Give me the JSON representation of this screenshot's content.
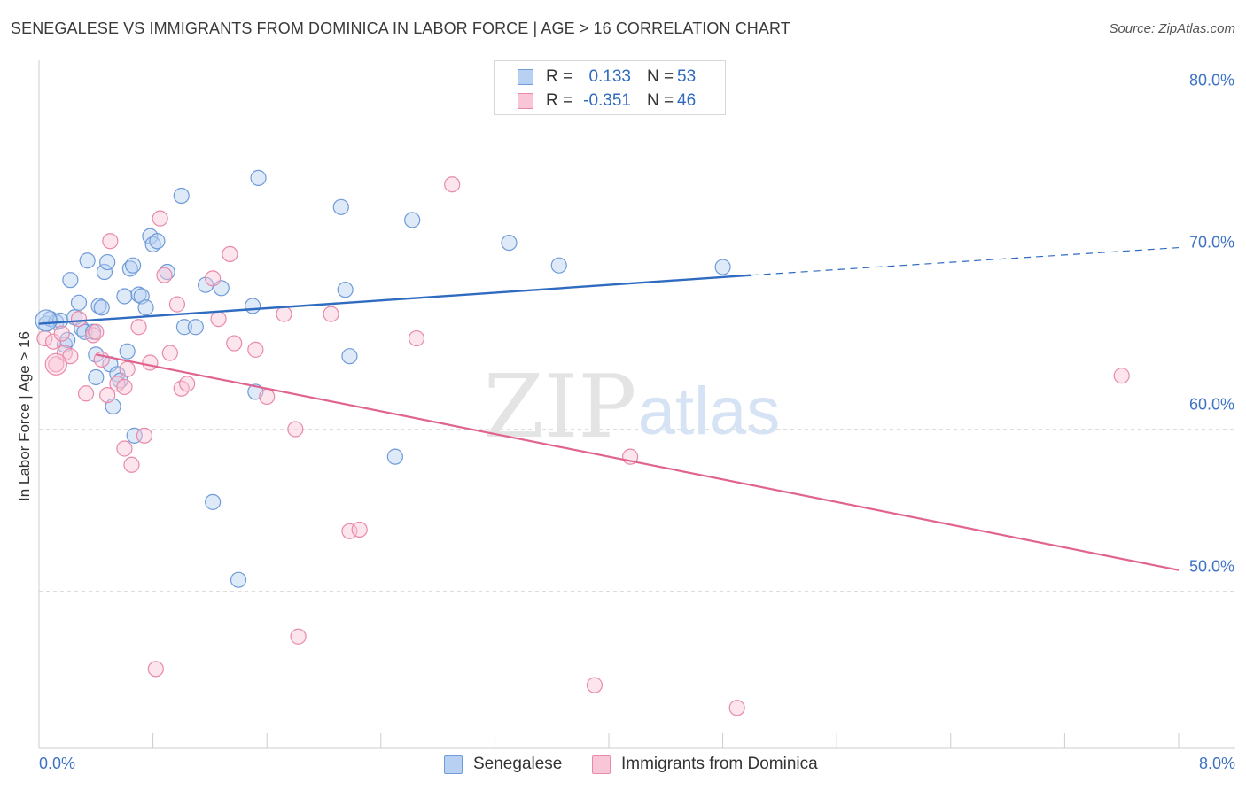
{
  "title": "SENEGALESE VS IMMIGRANTS FROM DOMINICA IN LABOR FORCE | AGE > 16 CORRELATION CHART",
  "source": "Source: ZipAtlas.com",
  "watermark": {
    "zip": "ZIP",
    "atlas": "atlas"
  },
  "legend_top": {
    "rows": [
      {
        "r_label": "R =",
        "r_value": "0.133",
        "n_label": "N =",
        "n_value": "53",
        "color": "#6f9bd8"
      },
      {
        "r_label": "R =",
        "r_value": "-0.351",
        "n_label": "N =",
        "n_value": "46",
        "color": "#e88aa8"
      }
    ]
  },
  "legend_bottom": [
    {
      "label": "Senegalese",
      "color": "#6f9bd8"
    },
    {
      "label": "Immigrants from Dominica",
      "color": "#e88aa8"
    }
  ],
  "x_tick_labels": {
    "left": "0.0%",
    "right": "8.0%"
  },
  "chart_data": {
    "type": "scatter",
    "title": "SENEGALESE VS IMMIGRANTS FROM DOMINICA IN LABOR FORCE | AGE > 16 CORRELATION CHART",
    "xlabel": "",
    "ylabel": "In Labor Force | Age > 16",
    "xlim": [
      0,
      8
    ],
    "ylim": [
      40.3,
      83.2
    ],
    "y_ticks": [
      50,
      60,
      70,
      80
    ],
    "y_tick_labels": [
      "50.0%",
      "60.0%",
      "70.0%",
      "80.0%"
    ],
    "grid": true,
    "legend": "top-center",
    "series": [
      {
        "name": "Senegalese",
        "color": "#6f9bd8",
        "points": [
          [
            0.05,
            66.5
          ],
          [
            0.08,
            66.8
          ],
          [
            0.12,
            66.6
          ],
          [
            0.15,
            66.7
          ],
          [
            0.18,
            65.2
          ],
          [
            0.2,
            65.5
          ],
          [
            0.22,
            69.2
          ],
          [
            0.28,
            67.8
          ],
          [
            0.3,
            66.2
          ],
          [
            0.32,
            66.0
          ],
          [
            0.34,
            70.4
          ],
          [
            0.38,
            66.0
          ],
          [
            0.4,
            64.6
          ],
          [
            0.4,
            63.2
          ],
          [
            0.42,
            67.6
          ],
          [
            0.44,
            67.5
          ],
          [
            0.46,
            69.7
          ],
          [
            0.48,
            70.3
          ],
          [
            0.5,
            64.0
          ],
          [
            0.52,
            61.4
          ],
          [
            0.55,
            63.4
          ],
          [
            0.57,
            63.0
          ],
          [
            0.6,
            68.2
          ],
          [
            0.62,
            64.8
          ],
          [
            0.64,
            69.9
          ],
          [
            0.66,
            70.1
          ],
          [
            0.67,
            59.6
          ],
          [
            0.7,
            68.3
          ],
          [
            0.72,
            68.2
          ],
          [
            0.75,
            67.5
          ],
          [
            0.78,
            71.9
          ],
          [
            0.8,
            71.4
          ],
          [
            0.83,
            71.6
          ],
          [
            0.9,
            69.7
          ],
          [
            1.0,
            74.4
          ],
          [
            1.02,
            66.3
          ],
          [
            1.1,
            66.3
          ],
          [
            1.17,
            68.9
          ],
          [
            1.22,
            55.5
          ],
          [
            1.28,
            68.7
          ],
          [
            1.4,
            50.7
          ],
          [
            1.52,
            62.3
          ],
          [
            1.54,
            75.5
          ],
          [
            2.12,
            73.7
          ],
          [
            2.15,
            68.6
          ],
          [
            2.18,
            64.5
          ],
          [
            2.5,
            58.3
          ],
          [
            2.62,
            72.9
          ],
          [
            3.3,
            71.5
          ],
          [
            3.65,
            70.1
          ],
          [
            4.8,
            70.0
          ],
          [
            1.5,
            67.6
          ],
          [
            0.25,
            66.9
          ]
        ]
      },
      {
        "name": "Immigrants from Dominica",
        "color": "#e88aa8",
        "points": [
          [
            0.04,
            65.6
          ],
          [
            0.1,
            65.4
          ],
          [
            0.12,
            64.0
          ],
          [
            0.18,
            64.7
          ],
          [
            0.22,
            64.5
          ],
          [
            0.28,
            66.8
          ],
          [
            0.33,
            62.2
          ],
          [
            0.38,
            65.8
          ],
          [
            0.4,
            66.0
          ],
          [
            0.44,
            64.3
          ],
          [
            0.48,
            62.1
          ],
          [
            0.5,
            71.6
          ],
          [
            0.55,
            62.8
          ],
          [
            0.6,
            58.8
          ],
          [
            0.62,
            63.7
          ],
          [
            0.65,
            57.8
          ],
          [
            0.7,
            66.3
          ],
          [
            0.74,
            59.6
          ],
          [
            0.78,
            64.1
          ],
          [
            0.82,
            45.2
          ],
          [
            0.85,
            73.0
          ],
          [
            0.88,
            69.5
          ],
          [
            0.92,
            64.7
          ],
          [
            0.97,
            67.7
          ],
          [
            1.0,
            62.5
          ],
          [
            1.04,
            62.8
          ],
          [
            1.22,
            69.3
          ],
          [
            1.26,
            66.8
          ],
          [
            1.34,
            70.8
          ],
          [
            1.37,
            65.3
          ],
          [
            1.52,
            64.9
          ],
          [
            1.6,
            62.0
          ],
          [
            1.72,
            67.1
          ],
          [
            1.8,
            60.0
          ],
          [
            1.82,
            47.2
          ],
          [
            2.05,
            67.1
          ],
          [
            2.18,
            53.7
          ],
          [
            2.25,
            53.8
          ],
          [
            2.65,
            65.6
          ],
          [
            2.9,
            75.1
          ],
          [
            3.9,
            44.2
          ],
          [
            4.15,
            58.3
          ],
          [
            4.9,
            42.8
          ],
          [
            7.6,
            63.3
          ],
          [
            0.16,
            65.9
          ],
          [
            0.6,
            62.6
          ]
        ]
      }
    ],
    "trend_lines": [
      {
        "series": "Senegalese",
        "x": [
          0,
          5.0
        ],
        "y": [
          66.5,
          69.5
        ],
        "dashed_to": [
          8.0,
          71.2
        ]
      },
      {
        "series": "Immigrants from Dominica",
        "x": [
          0.4,
          8.0
        ],
        "y": [
          64.6,
          51.3
        ]
      }
    ]
  }
}
